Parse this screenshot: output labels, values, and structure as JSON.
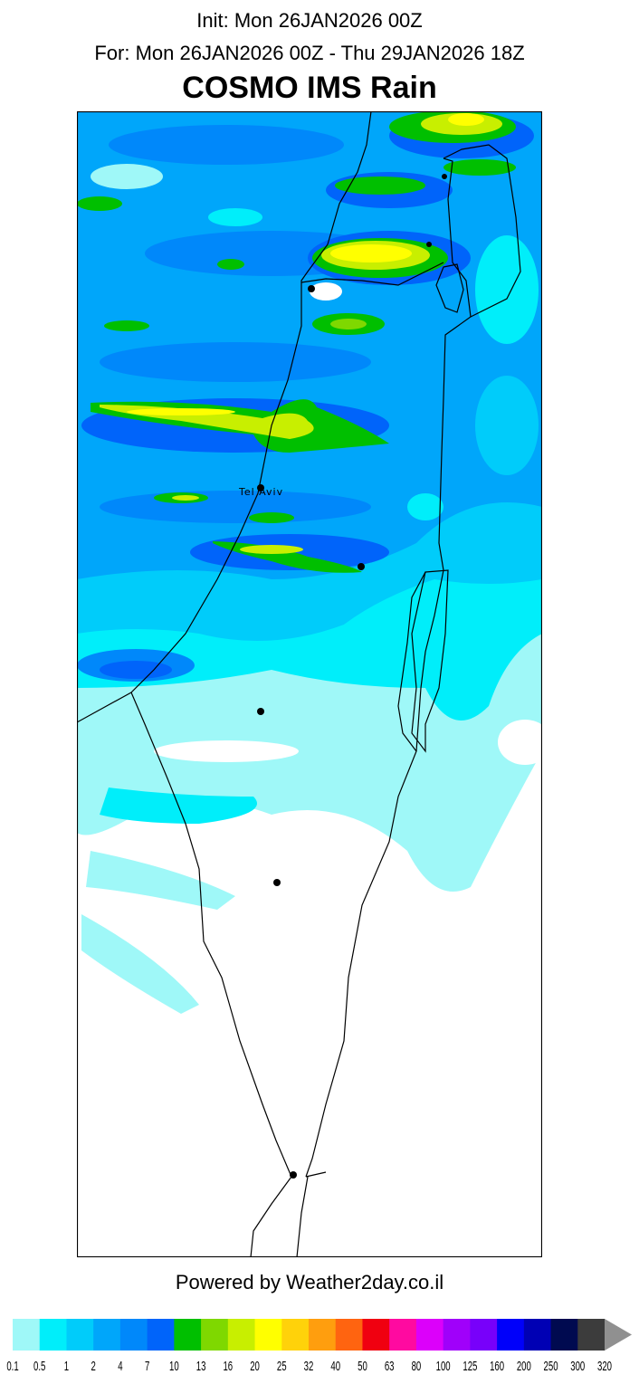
{
  "header": {
    "init": "Init: Mon 26JAN2026 00Z",
    "valid": "For: Mon 26JAN2026 00Z - Thu 29JAN2026 18Z",
    "title": "COSMO IMS Rain"
  },
  "map": {
    "city_label": "Tel Aviv",
    "city_marker_count": 8
  },
  "footer": {
    "powered": "Powered by Weather2day.co.il"
  },
  "legend": {
    "labels": [
      "0.1",
      "0.5",
      "1",
      "2",
      "4",
      "7",
      "10",
      "13",
      "16",
      "20",
      "25",
      "32",
      "40",
      "50",
      "63",
      "80",
      "100",
      "125",
      "160",
      "200",
      "250",
      "300",
      "320"
    ],
    "colors": [
      "#9ff8f8",
      "#00eefa",
      "#00ccfa",
      "#00a6fa",
      "#0088fa",
      "#0064fa",
      "#00bf00",
      "#7fd800",
      "#c8ef00",
      "#ffff00",
      "#ffd20a",
      "#ff9e0e",
      "#ff6410",
      "#f00010",
      "#ff0aa0",
      "#dc00fa",
      "#a000fa",
      "#7800fa",
      "#0000fa",
      "#0000b4",
      "#000a50",
      "#3c3c3c"
    ],
    "arrow_color": "#909090"
  }
}
